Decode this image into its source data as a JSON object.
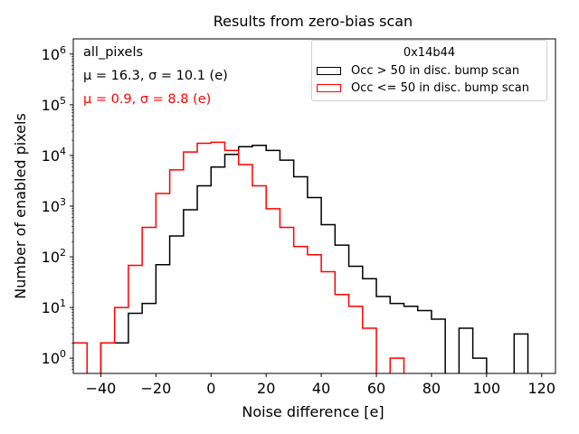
{
  "chart_data": {
    "type": "histogram",
    "title": "Results from zero-bias scan",
    "xlabel": "Noise difference [e]",
    "ylabel": "Number of enabled pixels",
    "xlim": [
      -50,
      125
    ],
    "ylim_log10": [
      -0.3,
      6.3
    ],
    "yscale": "log",
    "xticks": [
      -40,
      -20,
      0,
      20,
      40,
      60,
      80,
      100,
      120
    ],
    "xtick_labels": [
      "−40",
      "−20",
      "0",
      "20",
      "40",
      "60",
      "80",
      "100",
      "120"
    ],
    "yticks_exp": [
      0,
      1,
      2,
      3,
      4,
      5,
      6
    ],
    "bin_edges_start": -50,
    "bin_width": 5,
    "series": [
      {
        "name": "Occ > 50 in disc. bump scan",
        "color": "#000000",
        "values": [
          0,
          0,
          2,
          2,
          7.7,
          12,
          70,
          258,
          850,
          2520,
          5900,
          10500,
          14900,
          15800,
          12600,
          8100,
          3800,
          1480,
          430,
          170,
          65,
          37,
          16.5,
          12,
          10.6,
          8.7,
          5.9,
          0,
          3.9,
          1,
          0,
          0,
          3,
          0
        ]
      },
      {
        "name": "Occ <= 50 in disc. bump scan",
        "color": "#ff0000",
        "values": [
          2,
          0,
          2,
          10,
          68,
          380,
          1780,
          5200,
          11700,
          17400,
          18200,
          12600,
          6600,
          2520,
          890,
          380,
          160,
          110,
          51,
          18,
          10.6,
          3.9,
          0,
          1,
          0,
          0,
          0,
          0,
          0,
          0,
          0,
          0,
          0,
          0
        ]
      }
    ],
    "legend": {
      "title": "0x14b44",
      "placement": "upper right"
    },
    "annotations": [
      {
        "text": "all_pixels",
        "color": "#000000"
      },
      {
        "text": "μ = 16.3, σ = 10.1 (e)",
        "color": "#000000"
      },
      {
        "text": "μ = 0.9, σ = 8.8 (e)",
        "color": "#ff0000"
      }
    ]
  }
}
